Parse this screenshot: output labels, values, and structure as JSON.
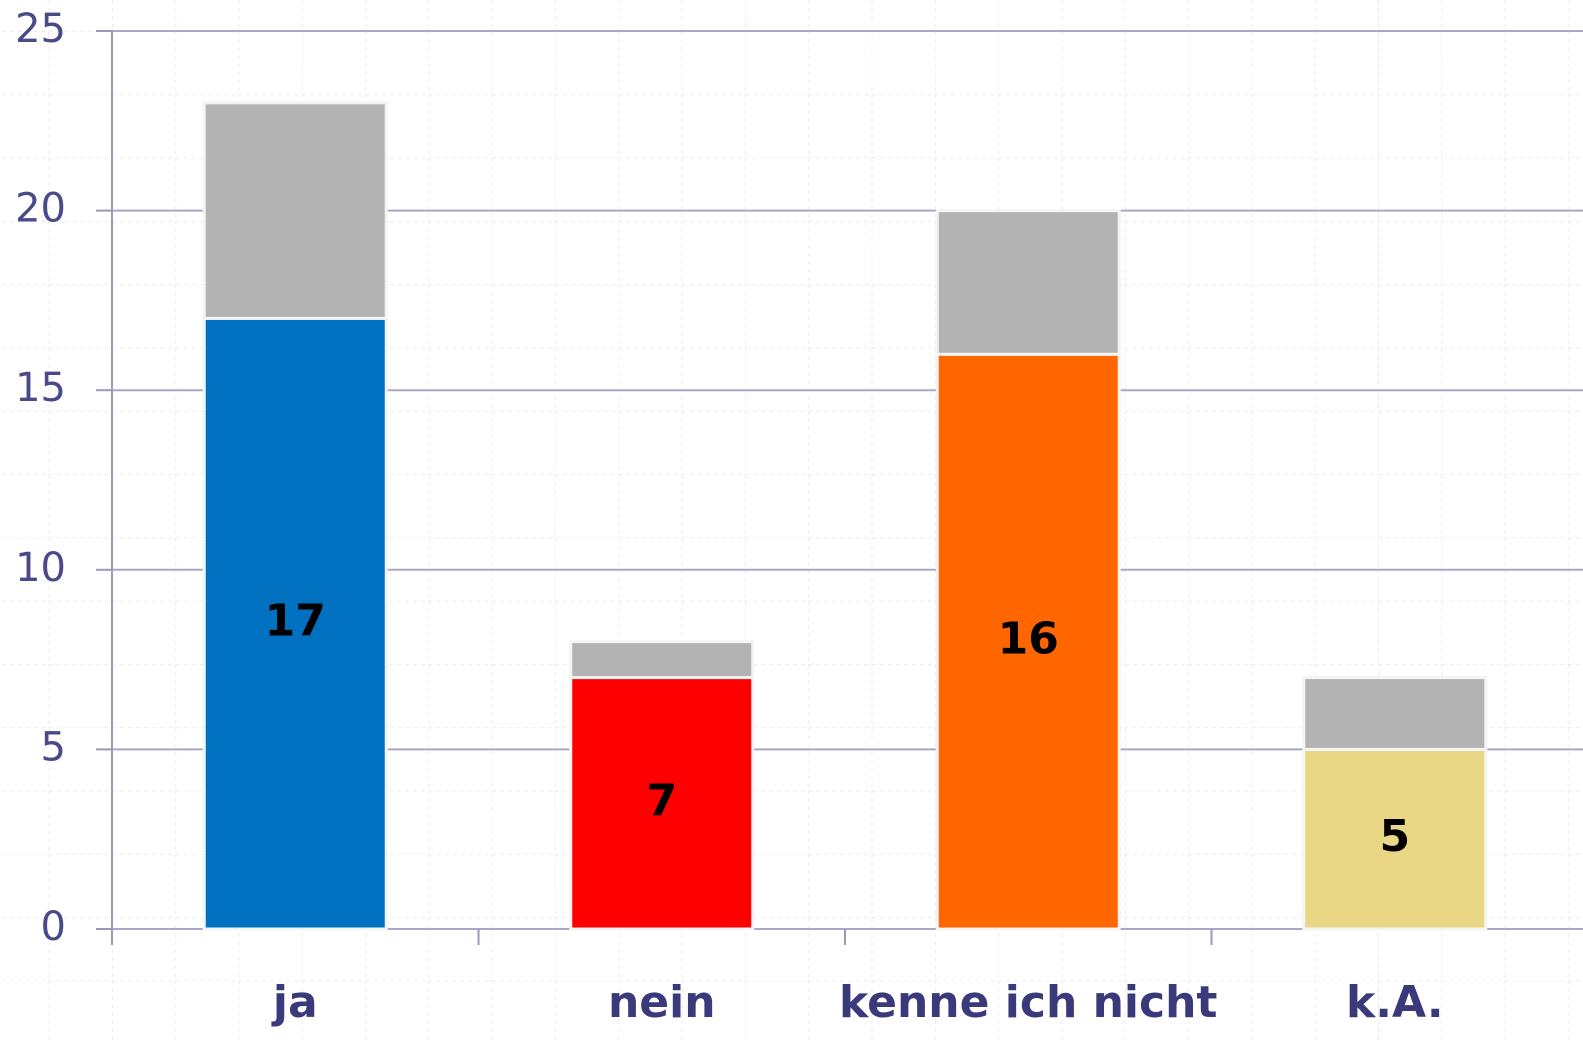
{
  "chart_data": {
    "type": "stacked_bar",
    "categories": [
      "ja",
      "nein",
      "kenne ich nicht",
      "k.A."
    ],
    "series": [
      {
        "colors": [
          "#0070c0",
          "#ff0000",
          "#ff6600",
          "#ead785"
        ],
        "values": [
          17,
          7,
          16,
          5
        ]
      },
      {
        "color": "#b3b3b3",
        "values": [
          6,
          1,
          4,
          2
        ]
      }
    ],
    "ylim": [
      0,
      25
    ],
    "yticks": [
      0,
      5,
      10,
      15,
      20,
      25
    ],
    "grid": true
  }
}
